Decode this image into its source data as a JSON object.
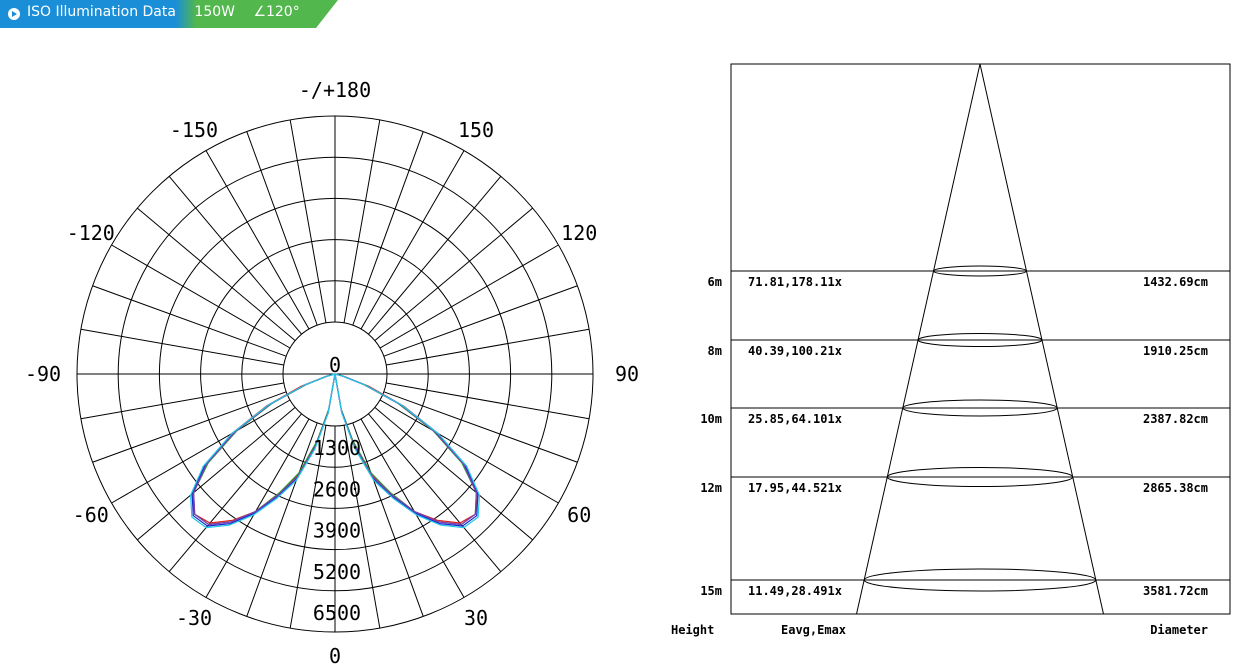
{
  "header": {
    "title": "ISO Illumination  Data",
    "power": "150W",
    "beam_angle": "∠120°",
    "icon": "play-circle-icon",
    "colors": {
      "left": "#1a8fd8",
      "right": "#52b74d"
    }
  },
  "chart_data": [
    {
      "type": "polar",
      "angle_labels": [
        "-/+180",
        "150",
        "120",
        "90",
        "60",
        "30",
        "0",
        "-30",
        "-60",
        "-90",
        "-120",
        "-150"
      ],
      "center_label": "0",
      "radial_ticks": [
        "1300",
        "2600",
        "3900",
        "5200",
        "6500"
      ],
      "radial_max": 6500,
      "grid_step_deg": 10,
      "series": [
        {
          "color": "#e02020",
          "points": [
            [
              0,
              0
            ],
            [
              10,
              900
            ],
            [
              15,
              1800
            ],
            [
              20,
              2700
            ],
            [
              25,
              3300
            ],
            [
              30,
              4000
            ],
            [
              35,
              4500
            ],
            [
              40,
              4900
            ],
            [
              45,
              5000
            ],
            [
              50,
              4700
            ],
            [
              55,
              4000
            ],
            [
              60,
              3000
            ],
            [
              65,
              1900
            ],
            [
              70,
              900
            ],
            [
              75,
              250
            ],
            [
              80,
              0
            ]
          ]
        },
        {
          "color": "#2e9e2e",
          "points": [
            [
              0,
              0
            ],
            [
              10,
              900
            ],
            [
              15,
              1750
            ],
            [
              20,
              2650
            ],
            [
              25,
              3300
            ],
            [
              30,
              4000
            ],
            [
              35,
              4550
            ],
            [
              40,
              4950
            ],
            [
              45,
              5000
            ],
            [
              50,
              4650
            ],
            [
              55,
              3900
            ],
            [
              60,
              2850
            ],
            [
              65,
              1750
            ],
            [
              70,
              750
            ],
            [
              75,
              150
            ],
            [
              80,
              0
            ]
          ]
        },
        {
          "color": "#1a2ad0",
          "points": [
            [
              0,
              0
            ],
            [
              10,
              1000
            ],
            [
              15,
              1900
            ],
            [
              20,
              2800
            ],
            [
              25,
              3400
            ],
            [
              30,
              4050
            ],
            [
              35,
              4600
            ],
            [
              40,
              5000
            ],
            [
              45,
              5050
            ],
            [
              50,
              4700
            ],
            [
              55,
              4000
            ],
            [
              60,
              2950
            ],
            [
              65,
              1800
            ],
            [
              70,
              800
            ],
            [
              75,
              200
            ],
            [
              80,
              0
            ]
          ]
        },
        {
          "color": "#7a3ab8",
          "points": [
            [
              0,
              0
            ],
            [
              10,
              950
            ],
            [
              15,
              1850
            ],
            [
              20,
              2750
            ],
            [
              25,
              3350
            ],
            [
              30,
              4000
            ],
            [
              35,
              4550
            ],
            [
              40,
              4950
            ],
            [
              45,
              5000
            ],
            [
              50,
              4650
            ],
            [
              55,
              3950
            ],
            [
              60,
              2900
            ],
            [
              65,
              1800
            ],
            [
              70,
              800
            ],
            [
              75,
              200
            ],
            [
              80,
              0
            ]
          ]
        },
        {
          "color": "#20c8e8",
          "points": [
            [
              0,
              0
            ],
            [
              10,
              1000
            ],
            [
              15,
              1950
            ],
            [
              20,
              2850
            ],
            [
              25,
              3450
            ],
            [
              30,
              4100
            ],
            [
              35,
              4650
            ],
            [
              40,
              5050
            ],
            [
              45,
              5100
            ],
            [
              50,
              4750
            ],
            [
              55,
              4050
            ],
            [
              60,
              3000
            ],
            [
              65,
              1850
            ],
            [
              70,
              800
            ],
            [
              75,
              200
            ],
            [
              80,
              0
            ]
          ]
        }
      ]
    },
    {
      "type": "table",
      "footer": {
        "height": "Height",
        "eavg": "Eavg,Emax",
        "diameter": "Diameter"
      },
      "rows": [
        {
          "height": "6m",
          "values": "71.81,178.11x",
          "diameter": "1432.69cm"
        },
        {
          "height": "8m",
          "values": "40.39,100.21x",
          "diameter": "1910.25cm"
        },
        {
          "height": "10m",
          "values": "25.85,64.101x",
          "diameter": "2387.82cm"
        },
        {
          "height": "12m",
          "values": "17.95,44.521x",
          "diameter": "2865.38cm"
        },
        {
          "height": "15m",
          "values": "11.49,28.491x",
          "diameter": "3581.72cm"
        }
      ]
    }
  ]
}
